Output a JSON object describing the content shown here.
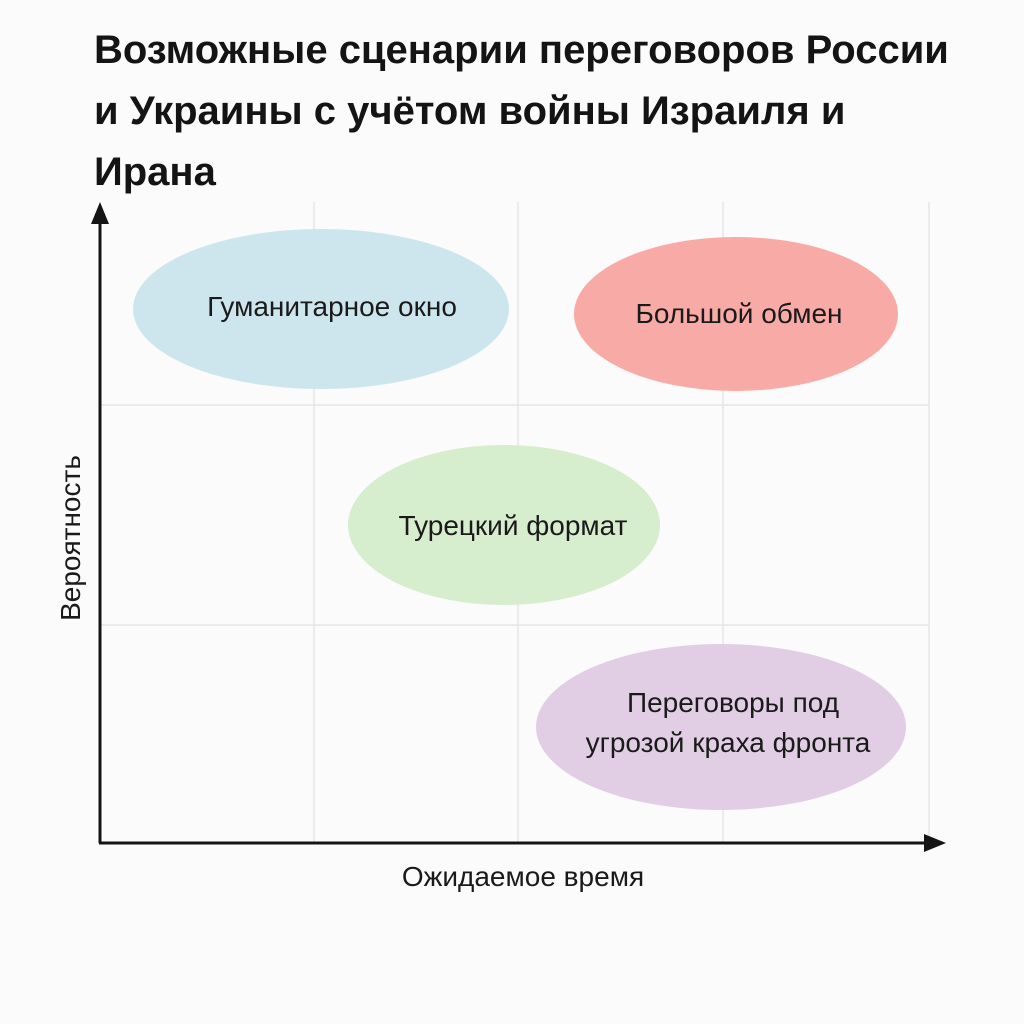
{
  "title": "Возможные сценарии переговоров России и Украины с учётом войны Израиля и Ирана",
  "axes": {
    "x_label": "Ожидаемое время",
    "y_label": "Вероятность"
  },
  "scenarios": [
    {
      "name": "humanitarian-window",
      "lines": [
        "Гуманитарное окно"
      ],
      "color": "#cde6ee"
    },
    {
      "name": "big-exchange",
      "lines": [
        "Большой обмен"
      ],
      "color": "#f8aaa6"
    },
    {
      "name": "turkish-format",
      "lines": [
        "Турецкий формат"
      ],
      "color": "#d6edce"
    },
    {
      "name": "front-collapse-talks",
      "lines": [
        "Переговоры под",
        "угрозой краха фронта"
      ],
      "color": "#e1cde4"
    }
  ]
}
